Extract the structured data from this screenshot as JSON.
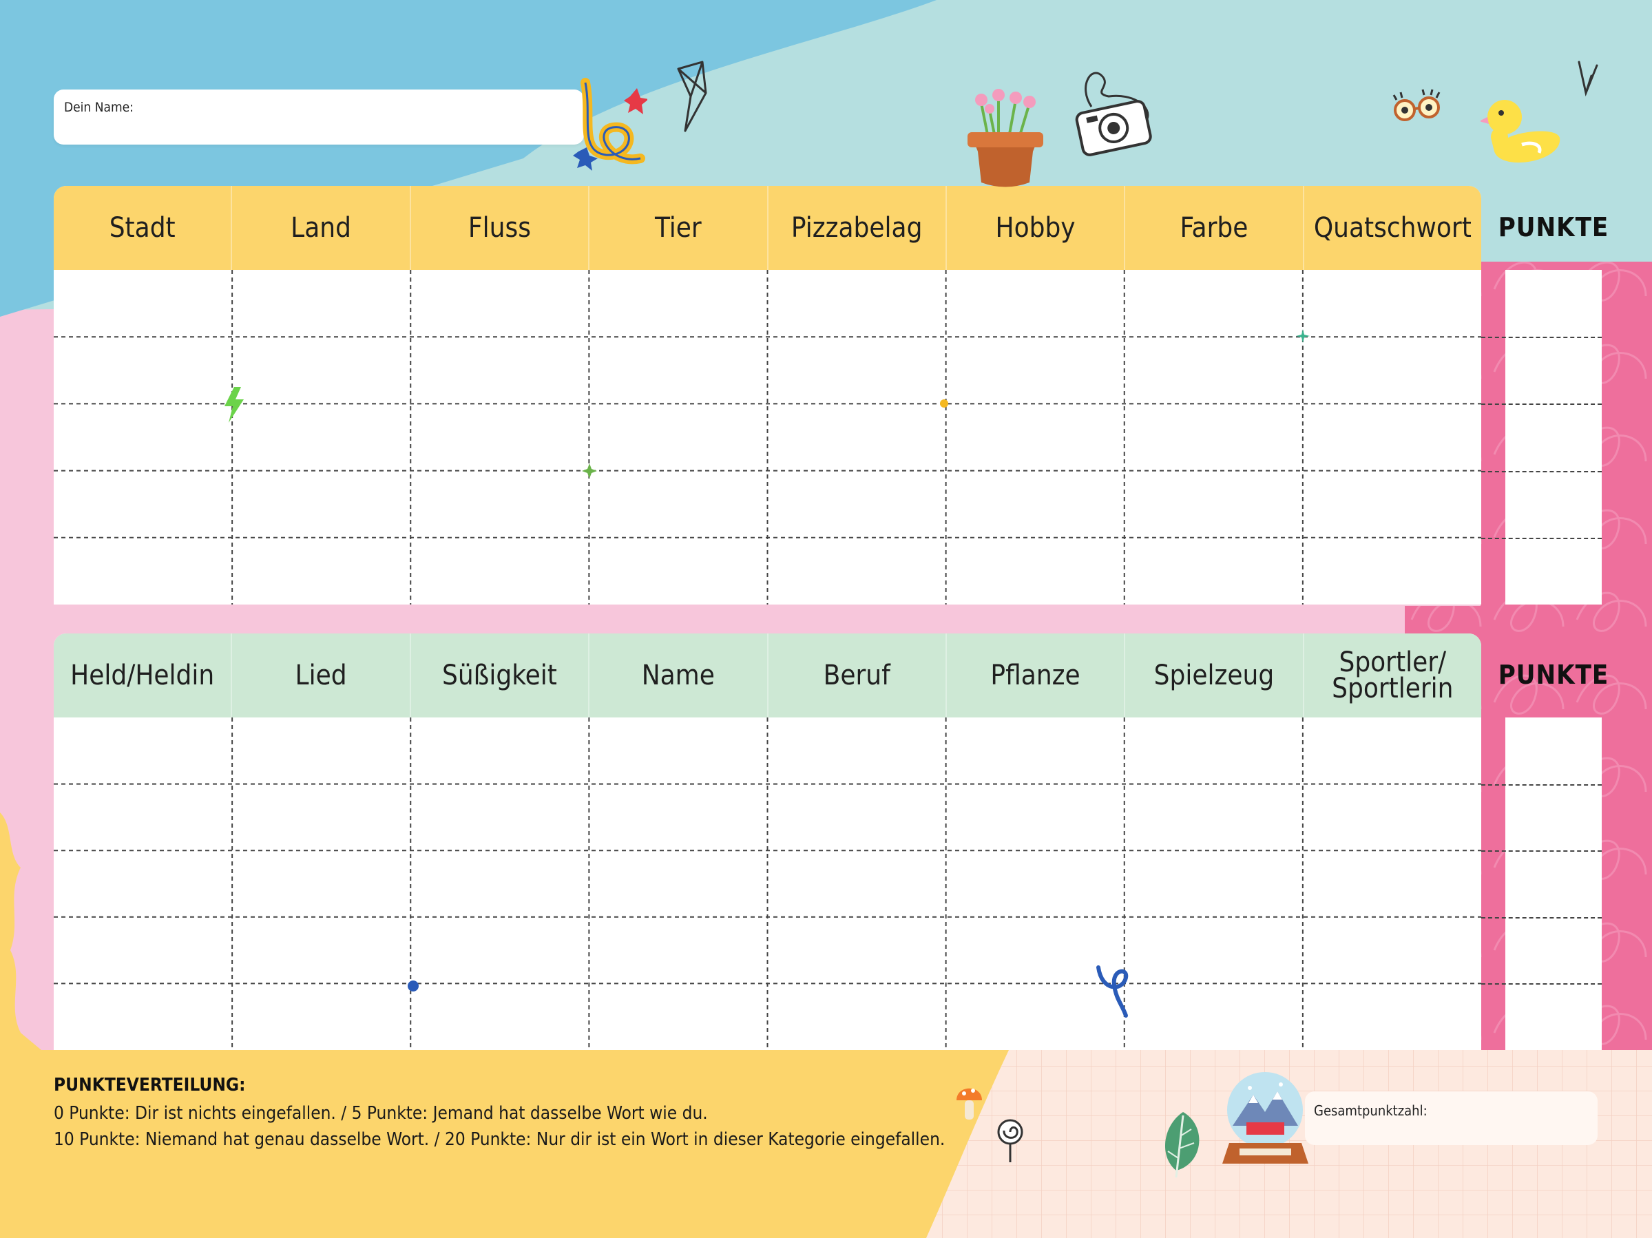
{
  "header": {
    "name_label": "Dein Name:"
  },
  "table_top": {
    "columns": [
      "Stadt",
      "Land",
      "Fluss",
      "Tier",
      "Pizzabelag",
      "Hobby",
      "Farbe",
      "Quatschwort"
    ],
    "score_label": "PUNKTE",
    "header_color": "#fcd56c",
    "rows": 5
  },
  "table_bottom": {
    "columns": [
      "Held/Heldin",
      "Lied",
      "Süßigkeit",
      "Name",
      "Beruf",
      "Pflanze",
      "Spielzeug",
      "Sportler/\nSportlerin"
    ],
    "score_label": "PUNKTE",
    "header_color": "#cde8d4",
    "rows": 5
  },
  "rules": {
    "title": "PUNKTEVERTEILUNG:",
    "line1": "0 Punkte: Dir ist nichts eingefallen. / 5 Punkte: Jemand hat dasselbe Wort wie du.",
    "line2": "10 Punkte: Niemand hat genau dasselbe Wort. / 20 Punkte: Nur dir ist ein Wort in dieser Kategorie eingefallen."
  },
  "total": {
    "label": "Gesamtpunktzahl:"
  },
  "colors": {
    "sky_blue": "#7cc6e0",
    "mint": "#b5dfe0",
    "pink": "#f7c6db",
    "hot_pink": "#ee6f9c",
    "yellow": "#fcd56c",
    "peach": "#fde9df"
  },
  "icons": [
    "pencil-letter-icon",
    "paper-plane-icon",
    "flower-pot-icon",
    "camera-icon",
    "glasses-icon",
    "rubber-duck-icon",
    "lightning-icon",
    "mushroom-icon",
    "lollipop-icon",
    "leaf-icon",
    "snow-globe-icon"
  ]
}
